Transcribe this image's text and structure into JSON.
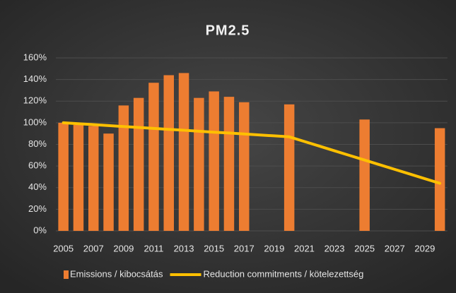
{
  "chart_data": {
    "type": "bar-line",
    "title": "PM2.5",
    "categories": [
      "2005",
      null,
      "2007",
      null,
      "2009",
      null,
      "2011",
      null,
      "2013",
      null,
      "2015",
      null,
      "2017",
      null,
      "2019",
      null,
      "2021",
      null,
      "2023",
      null,
      "2025",
      null,
      "2027",
      null,
      "2029",
      null
    ],
    "series": [
      {
        "name": "Emissions / kibocsátás",
        "type": "bar",
        "color": "#ed7d31",
        "values": [
          100,
          98,
          97,
          90,
          116,
          123,
          137,
          144,
          146,
          123,
          129,
          124,
          119,
          null,
          null,
          117,
          null,
          null,
          null,
          null,
          103,
          null,
          null,
          null,
          null,
          95
        ]
      },
      {
        "name": "Reduction commitments / kötelezettség",
        "type": "line",
        "color": "#ffc000",
        "values": [
          100,
          99.1,
          98.3,
          97.4,
          96.5,
          95.7,
          94.8,
          93.9,
          93.1,
          92.2,
          91.3,
          90.5,
          89.6,
          88.7,
          87.9,
          87,
          82.7,
          78.4,
          74.1,
          69.8,
          65.5,
          61.2,
          56.9,
          52.6,
          48.3,
          44
        ]
      }
    ],
    "ylim": [
      0,
      160
    ],
    "yticks": [
      {
        "value": 0,
        "label": "0%"
      },
      {
        "value": 20,
        "label": "20%"
      },
      {
        "value": 40,
        "label": "40%"
      },
      {
        "value": 60,
        "label": "60%"
      },
      {
        "value": 80,
        "label": "80%"
      },
      {
        "value": 100,
        "label": "100%"
      },
      {
        "value": 120,
        "label": "120%"
      },
      {
        "value": 140,
        "label": "140%"
      },
      {
        "value": 160,
        "label": "160%"
      }
    ],
    "grid": true,
    "legend": "bottom"
  }
}
